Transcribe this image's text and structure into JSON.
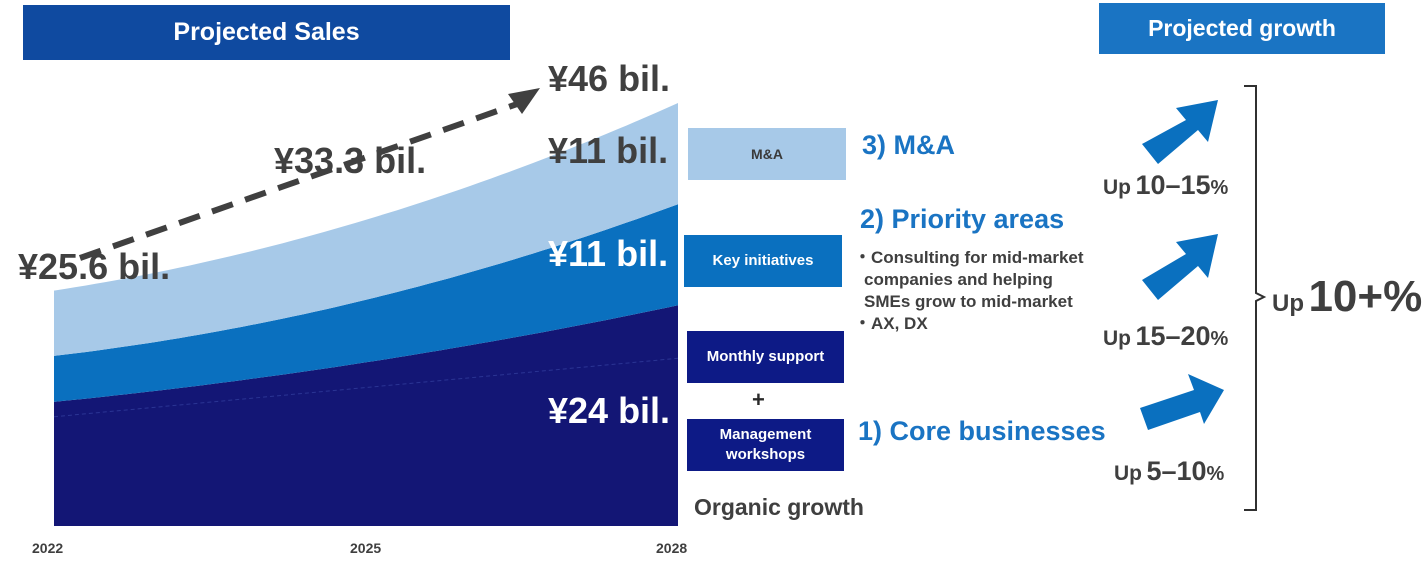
{
  "header": {
    "left_title": "Projected Sales",
    "right_title": "Projected growth"
  },
  "chart_data": {
    "type": "area",
    "stacked": true,
    "x": [
      2022,
      2025,
      2028
    ],
    "xlabel": "",
    "ylabel": "",
    "ylim": [
      0,
      46
    ],
    "series": [
      {
        "label": "¥24 bil.",
        "color": "#131675",
        "values": [
          13.5,
          17.8,
          24
        ]
      },
      {
        "label": "¥11 bil.",
        "color": "#0a70bf",
        "values": [
          5.0,
          6.8,
          11
        ]
      },
      {
        "label": "¥11 bil.",
        "color": "#a7c9e8",
        "values": [
          7.1,
          8.7,
          11
        ]
      }
    ],
    "totals": [
      "¥25.6 bil.",
      "¥33.3 bil.",
      "¥46 bil."
    ]
  },
  "legend_boxes": {
    "ma": "M&A",
    "key": "Key initiatives",
    "monthly": "Monthly support",
    "plus": "+",
    "workshops": "Management workshops",
    "organic": "Organic growth"
  },
  "drivers": {
    "ma_heading": "3) M&A",
    "priority_heading": "2) Priority areas",
    "priority_bullets": [
      "・Consulting for mid-market",
      "companies and helping",
      "SMEs grow to mid-market",
      "・AX, DX"
    ],
    "core_heading": "1) Core businesses"
  },
  "growth": {
    "ma": {
      "word": "Up",
      "num": "10–15",
      "pct": "%"
    },
    "priority": {
      "word": "Up",
      "num": "15–20",
      "pct": "%"
    },
    "core": {
      "word": "Up",
      "num": "5–10",
      "pct": "%"
    },
    "total": {
      "word": "Up",
      "num": "10+%"
    },
    "arrow_color": "#0a70bf"
  }
}
